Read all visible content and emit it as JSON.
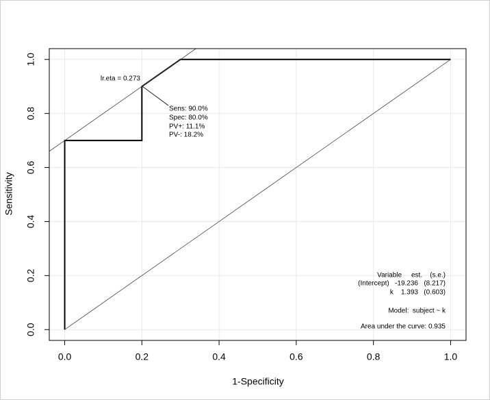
{
  "chart_data": {
    "type": "roc",
    "xlabel": "1-Specificity",
    "ylabel": "Sensitivity",
    "xlim": [
      -0.04,
      1.04
    ],
    "ylim": [
      -0.04,
      1.04
    ],
    "xticks": [
      {
        "value": 0,
        "label": "0.0"
      },
      {
        "value": 0.2,
        "label": "0.2"
      },
      {
        "value": 0.4,
        "label": "0.4"
      },
      {
        "value": 0.6,
        "label": "0.6"
      },
      {
        "value": 0.8,
        "label": "0.8"
      },
      {
        "value": 1,
        "label": "1.0"
      }
    ],
    "yticks": [
      {
        "value": 0,
        "label": "0.0"
      },
      {
        "value": 0.2,
        "label": "0.2"
      },
      {
        "value": 0.4,
        "label": "0.4"
      },
      {
        "value": 0.6,
        "label": "0.6"
      },
      {
        "value": 0.8,
        "label": "0.8"
      },
      {
        "value": 1,
        "label": "1.0"
      }
    ],
    "grid": true,
    "series": [
      {
        "color": "#000000",
        "width": 2,
        "x": [
          0,
          0,
          0.2,
          0.2,
          0.3,
          1
        ],
        "values": [
          0,
          0.7,
          0.7,
          0.9,
          1,
          1
        ]
      },
      {
        "color": "#444444",
        "width": 0.8,
        "x": [
          0,
          1
        ],
        "values": [
          0,
          1
        ]
      },
      {
        "color": "#444444",
        "width": 0.8,
        "x": [
          -0.04,
          0.34
        ],
        "values": [
          0.66,
          1.04
        ]
      }
    ],
    "annotations": [
      "lr.eta = 0.273",
      "Sens: 90.0%",
      "Spec: 80.0%",
      "PV+: 11.1%",
      "PV-: 18.2%",
      "Variable     est.    (s.e.)",
      "(Intercept)   -19.236   (8.217)",
      "k    1.393   (0.603)",
      "Model:  subject ~ k",
      "Area under the curve: 0.935"
    ]
  }
}
